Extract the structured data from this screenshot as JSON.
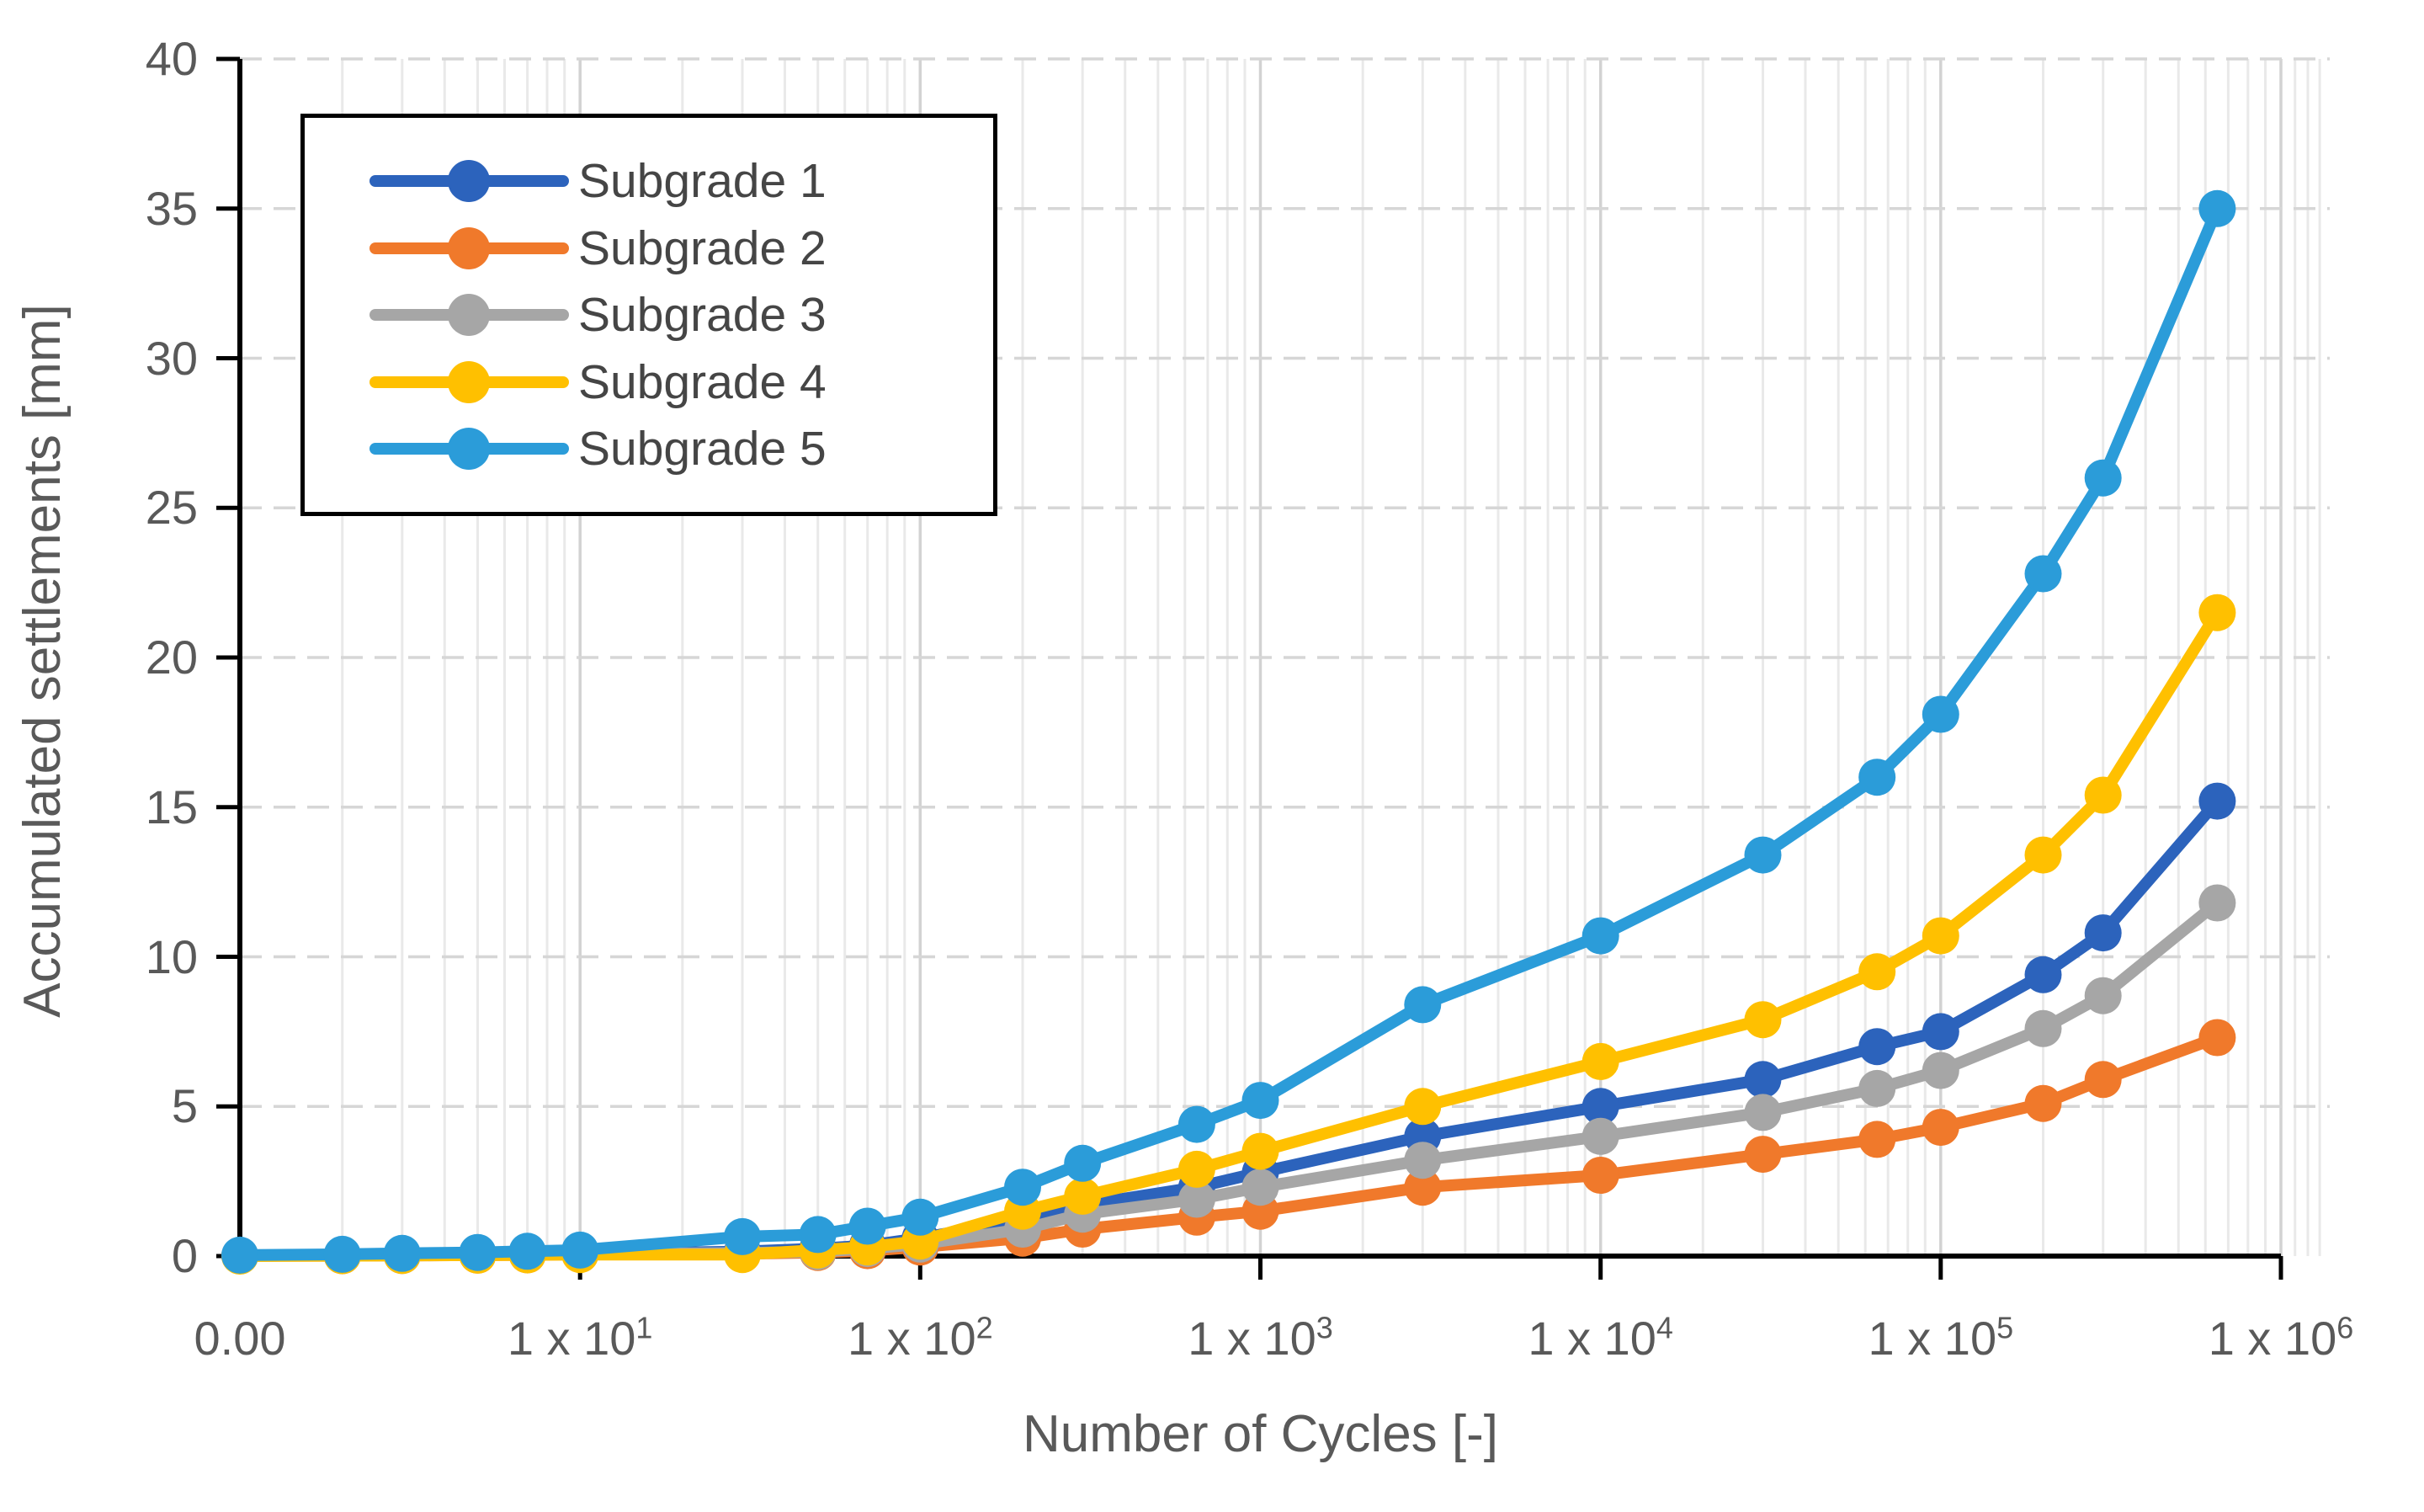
{
  "chart_data": {
    "type": "line",
    "title": "",
    "xlabel": "Number of Cycles [-]",
    "ylabel": "Accumulated settlements [mm]",
    "x_scale": "log",
    "xlim": [
      1,
      1000000
    ],
    "ylim": [
      0,
      40
    ],
    "grid": "on",
    "legend_position": "top-left",
    "x": [
      1,
      2,
      3,
      5,
      7,
      10,
      30,
      50,
      70,
      100,
      200,
      300,
      650,
      1000,
      3000,
      10000,
      30000,
      65000,
      100000,
      200000,
      300000,
      650000
    ],
    "series": [
      {
        "name": "Subgrade 1",
        "color": "#2C63BC",
        "values": [
          0.01,
          0.02,
          0.03,
          0.05,
          0.06,
          0.08,
          0.15,
          0.25,
          0.35,
          0.6,
          1.2,
          1.7,
          2.3,
          2.8,
          4.0,
          5.0,
          5.9,
          7.0,
          7.5,
          9.4,
          10.8,
          15.2
        ]
      },
      {
        "name": "Subgrade 2",
        "color": "#F0792B",
        "values": [
          0.01,
          0.01,
          0.02,
          0.03,
          0.04,
          0.06,
          0.08,
          0.12,
          0.18,
          0.3,
          0.6,
          0.9,
          1.3,
          1.5,
          2.3,
          2.7,
          3.4,
          3.9,
          4.3,
          5.1,
          5.9,
          7.3
        ]
      },
      {
        "name": "Subgrade 3",
        "color": "#A6A6A6",
        "values": [
          0.01,
          0.02,
          0.02,
          0.04,
          0.05,
          0.07,
          0.1,
          0.15,
          0.25,
          0.4,
          0.9,
          1.4,
          1.9,
          2.3,
          3.2,
          4.0,
          4.8,
          5.6,
          6.2,
          7.6,
          8.7,
          11.8
        ]
      },
      {
        "name": "Subgrade 4",
        "color": "#FFC000",
        "values": [
          0.0,
          0.01,
          0.02,
          0.03,
          0.04,
          0.05,
          0.05,
          0.2,
          0.3,
          0.5,
          1.5,
          2.0,
          2.9,
          3.5,
          5.0,
          6.5,
          7.9,
          9.5,
          10.7,
          13.4,
          15.4,
          21.5
        ]
      },
      {
        "name": "Subgrade 5",
        "color": "#2B9CD9",
        "values": [
          0.03,
          0.06,
          0.09,
          0.12,
          0.16,
          0.2,
          0.65,
          0.72,
          1.0,
          1.3,
          2.3,
          3.1,
          4.4,
          5.2,
          8.4,
          10.7,
          13.4,
          16.0,
          18.1,
          22.8,
          26.0,
          35.0
        ]
      }
    ],
    "x_tick_labels": [
      {
        "text": "0.00",
        "sup": "",
        "value": 1
      },
      {
        "text": "1 x 10",
        "sup": "1",
        "value": 10
      },
      {
        "text": "1 x 10",
        "sup": "2",
        "value": 100
      },
      {
        "text": "1 x 10",
        "sup": "3",
        "value": 1000
      },
      {
        "text": "1 x 10",
        "sup": "4",
        "value": 10000
      },
      {
        "text": "1 x 10",
        "sup": "5",
        "value": 100000
      },
      {
        "text": "1 x 10",
        "sup": "6",
        "value": 1000000
      }
    ],
    "y_ticks": [
      0,
      5,
      10,
      15,
      20,
      25,
      30,
      35,
      40
    ]
  },
  "style": {
    "axis_color": "#000000",
    "tick_text_color": "#595959",
    "legend_text_color": "#454545",
    "major_grid_color": "#d2d2d2",
    "minor_grid_color": "#e9e9e9",
    "h_grid_color": "#d6d6d6",
    "background": "#ffffff"
  }
}
